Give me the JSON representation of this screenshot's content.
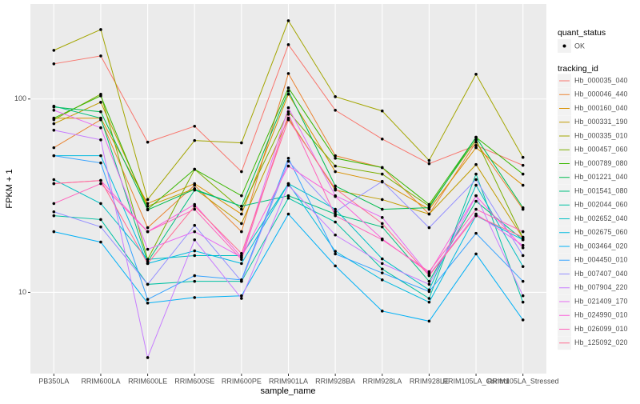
{
  "chart_data": {
    "type": "line",
    "x_label": "sample_name",
    "y_label": "FPKM + 1",
    "log_y": true,
    "grid": true,
    "ylim": [
      3.8,
      310
    ],
    "yticks": [
      10,
      100
    ],
    "point_legend": {
      "title": "quant_status",
      "label": "OK"
    },
    "legend_title": "tracking_id",
    "categories": [
      "PB350LA",
      "RRIM600LA",
      "RRIM600LE",
      "RRIM600SE",
      "RRIM600PE",
      "RRIM901LA",
      "RRIM928BA",
      "RRIM928LA",
      "RRIM928LE",
      "RRIM105LA_Control",
      "RRIM105LA_Stressed"
    ],
    "series": [
      {
        "name": "Hb_000035_040",
        "color": "#F8766D",
        "values": [
          152,
          167,
          59.8,
          72.3,
          42.1,
          191,
          87.5,
          62.1,
          46.3,
          57.5,
          45.4
        ]
      },
      {
        "name": "Hb_000046_440",
        "color": "#EA8331",
        "values": [
          56,
          78.1,
          21.6,
          35.8,
          20.6,
          135.5,
          50.9,
          44.2,
          25.4,
          59.8,
          26.9
        ]
      },
      {
        "name": "Hb_000160_040",
        "color": "#D89000",
        "values": [
          79.6,
          79.6,
          28.8,
          36.5,
          25.4,
          105.9,
          42.1,
          37.2,
          26.9,
          56,
          35.8
        ]
      },
      {
        "name": "Hb_000331_190",
        "color": "#C09B00",
        "values": [
          74.5,
          96.2,
          27.9,
          34.4,
          22.7,
          79.6,
          33.8,
          30.2,
          25.4,
          45.8,
          19.1
        ]
      },
      {
        "name": "Hb_000335_010",
        "color": "#A3A500",
        "values": [
          178.6,
          228.6,
          30.2,
          61,
          59.3,
          254,
          102.8,
          86.7,
          48.1,
          134.3,
          49.9
        ]
      },
      {
        "name": "Hb_000457_060",
        "color": "#7CAE00",
        "values": [
          78.1,
          105.9,
          14.8,
          43.3,
          26.9,
          85.9,
          45,
          40.9,
          27.9,
          61.5,
          19.1
        ]
      },
      {
        "name": "Hb_000789_080",
        "color": "#39B600",
        "values": [
          79.6,
          103.8,
          26.9,
          43.3,
          31.6,
          114.2,
          49.4,
          44.2,
          28.5,
          63.4,
          40.9
        ]
      },
      {
        "name": "Hb_001221_040",
        "color": "#00BB4E",
        "values": [
          90.9,
          85.9,
          26.7,
          34.1,
          27.9,
          109.9,
          35.5,
          26.9,
          27.4,
          63.4,
          27.4
        ]
      },
      {
        "name": "Hb_001541_080",
        "color": "#00BF7D",
        "values": [
          91.8,
          79.6,
          14.4,
          33.8,
          27.9,
          31.6,
          25.4,
          21.8,
          11.4,
          29.6,
          18.7
        ]
      },
      {
        "name": "Hb_002044_060",
        "color": "#00C1A3",
        "values": [
          24.9,
          23.8,
          11,
          11.4,
          11.4,
          30.7,
          23.1,
          13.2,
          9.3,
          40.9,
          8.9
        ]
      },
      {
        "name": "Hb_002652_040",
        "color": "#00BFC4",
        "values": [
          38.3,
          28.8,
          14.8,
          15.5,
          15.5,
          36.5,
          26.9,
          14.9,
          10.3,
          35.8,
          13.6
        ]
      },
      {
        "name": "Hb_002675_060",
        "color": "#00BAE0",
        "values": [
          50.9,
          50.9,
          14.1,
          16.4,
          14.1,
          36.5,
          16.3,
          11.6,
          8.9,
          24.9,
          18.7
        ]
      },
      {
        "name": "Hb_003464_020",
        "color": "#00B0F6",
        "values": [
          20.6,
          18.2,
          8.8,
          9.4,
          9.6,
          25.4,
          13.7,
          8,
          7.1,
          15.8,
          7.2
        ]
      },
      {
        "name": "Hb_004450_010",
        "color": "#35A2FF",
        "values": [
          50.9,
          46.7,
          9.2,
          12.2,
          11.6,
          49.4,
          15.8,
          12.6,
          10.1,
          20.2,
          11.4
        ]
      },
      {
        "name": "Hb_007407_040",
        "color": "#9590FF",
        "values": [
          26.1,
          21.8,
          11,
          22.2,
          11.4,
          47.6,
          26.1,
          37.5,
          21.6,
          38.3,
          15.5
        ]
      },
      {
        "name": "Hb_007904_220",
        "color": "#C77CFF",
        "values": [
          69,
          61.5,
          4.6,
          18.7,
          9.3,
          35.8,
          19.8,
          14.1,
          11,
          31.6,
          9.6
        ]
      },
      {
        "name": "Hb_021409_170",
        "color": "#E76BF3",
        "values": [
          87.5,
          71,
          16.7,
          20.6,
          15.2,
          90.1,
          31.6,
          24.4,
          12.3,
          25.4,
          17.5
        ]
      },
      {
        "name": "Hb_024990_010",
        "color": "#FA62DB",
        "values": [
          36.5,
          37.9,
          20.6,
          28.5,
          15.2,
          45,
          31.3,
          18.9,
          12.6,
          31.6,
          17
        ]
      },
      {
        "name": "Hb_026099_010",
        "color": "#FF62BC",
        "values": [
          28.8,
          36.5,
          20.6,
          26.9,
          14.8,
          83.4,
          24.9,
          18.7,
          12.8,
          26.9,
          20.6
        ]
      },
      {
        "name": "Hb_125092_020",
        "color": "#FF6C91",
        "values": [
          36.5,
          37.9,
          14.1,
          27.9,
          15.9,
          78.1,
          34.4,
          22.7,
          12.2,
          24.9,
          19.3
        ]
      }
    ]
  }
}
